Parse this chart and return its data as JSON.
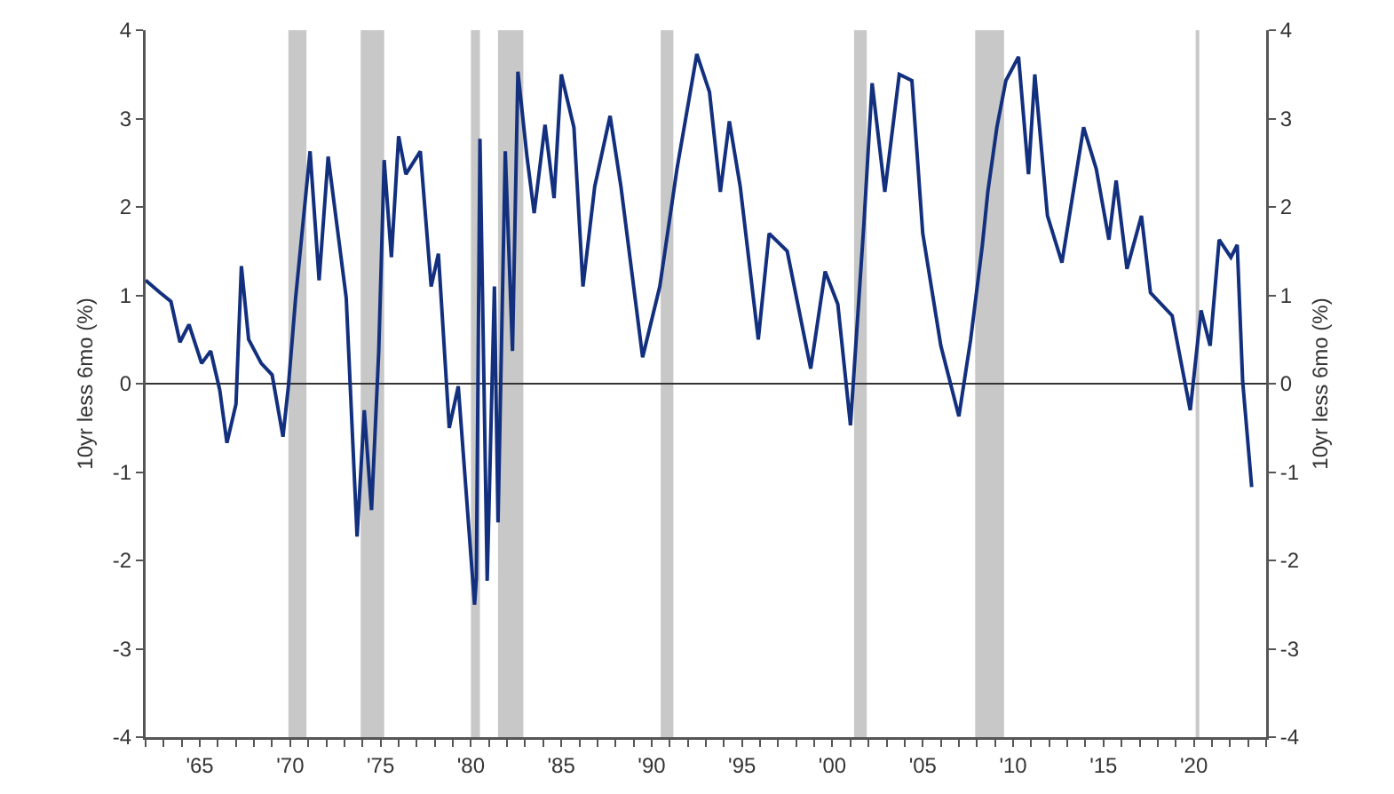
{
  "chart_data": {
    "type": "line",
    "ylabel": "10yr less 6mo (%)",
    "y2label": "10yr less 6mo (%)",
    "xlim": [
      1962.0,
      2024.0
    ],
    "xticks": [
      {
        "value": 1962,
        "label": null
      },
      {
        "value": 1963,
        "label": null
      },
      {
        "value": 1964,
        "label": null
      },
      {
        "value": 1965,
        "label": "'65"
      },
      {
        "value": 1966,
        "label": null
      },
      {
        "value": 1967,
        "label": null
      },
      {
        "value": 1968,
        "label": null
      },
      {
        "value": 1969,
        "label": null
      },
      {
        "value": 1970,
        "label": "'70"
      },
      {
        "value": 1971,
        "label": null
      },
      {
        "value": 1972,
        "label": null
      },
      {
        "value": 1973,
        "label": null
      },
      {
        "value": 1974,
        "label": null
      },
      {
        "value": 1975,
        "label": "'75"
      },
      {
        "value": 1976,
        "label": null
      },
      {
        "value": 1977,
        "label": null
      },
      {
        "value": 1978,
        "label": null
      },
      {
        "value": 1979,
        "label": null
      },
      {
        "value": 1980,
        "label": "'80"
      },
      {
        "value": 1981,
        "label": null
      },
      {
        "value": 1982,
        "label": null
      },
      {
        "value": 1983,
        "label": null
      },
      {
        "value": 1984,
        "label": null
      },
      {
        "value": 1985,
        "label": "'85"
      },
      {
        "value": 1986,
        "label": null
      },
      {
        "value": 1987,
        "label": null
      },
      {
        "value": 1988,
        "label": null
      },
      {
        "value": 1989,
        "label": null
      },
      {
        "value": 1990,
        "label": "'90"
      },
      {
        "value": 1991,
        "label": null
      },
      {
        "value": 1992,
        "label": null
      },
      {
        "value": 1993,
        "label": null
      },
      {
        "value": 1994,
        "label": null
      },
      {
        "value": 1995,
        "label": "'95"
      },
      {
        "value": 1996,
        "label": null
      },
      {
        "value": 1997,
        "label": null
      },
      {
        "value": 1998,
        "label": null
      },
      {
        "value": 1999,
        "label": null
      },
      {
        "value": 2000,
        "label": "'00"
      },
      {
        "value": 2001,
        "label": null
      },
      {
        "value": 2002,
        "label": null
      },
      {
        "value": 2003,
        "label": null
      },
      {
        "value": 2004,
        "label": null
      },
      {
        "value": 2005,
        "label": "'05"
      },
      {
        "value": 2006,
        "label": null
      },
      {
        "value": 2007,
        "label": null
      },
      {
        "value": 2008,
        "label": null
      },
      {
        "value": 2009,
        "label": null
      },
      {
        "value": 2010,
        "label": "'10"
      },
      {
        "value": 2011,
        "label": null
      },
      {
        "value": 2012,
        "label": null
      },
      {
        "value": 2013,
        "label": null
      },
      {
        "value": 2014,
        "label": null
      },
      {
        "value": 2015,
        "label": "'15"
      },
      {
        "value": 2016,
        "label": null
      },
      {
        "value": 2017,
        "label": null
      },
      {
        "value": 2018,
        "label": null
      },
      {
        "value": 2019,
        "label": null
      },
      {
        "value": 2020,
        "label": "'20"
      },
      {
        "value": 2021,
        "label": null
      },
      {
        "value": 2022,
        "label": null
      },
      {
        "value": 2023,
        "label": null
      },
      {
        "value": 2024,
        "label": null
      }
    ],
    "ylim": [
      -4,
      4
    ],
    "yticks": [
      -4,
      -3,
      -2,
      -1,
      0,
      1,
      2,
      3,
      4
    ],
    "y2lim": [
      -4,
      4
    ],
    "y2ticks": [
      -4,
      -3,
      -2,
      -1,
      0,
      1,
      2,
      3,
      4
    ],
    "ref_lines": [
      {
        "axis": "y",
        "value": 0,
        "color": "#333333"
      }
    ],
    "bands": [
      {
        "axis": "x",
        "from": 1969.9,
        "to": 1970.9,
        "color": "#c8c8c8"
      },
      {
        "axis": "x",
        "from": 1973.9,
        "to": 1975.2,
        "color": "#c8c8c8"
      },
      {
        "axis": "x",
        "from": 1980.0,
        "to": 1980.5,
        "color": "#c8c8c8"
      },
      {
        "axis": "x",
        "from": 1981.5,
        "to": 1982.9,
        "color": "#c8c8c8"
      },
      {
        "axis": "x",
        "from": 1990.5,
        "to": 1991.2,
        "color": "#c8c8c8"
      },
      {
        "axis": "x",
        "from": 2001.2,
        "to": 2001.9,
        "color": "#c8c8c8"
      },
      {
        "axis": "x",
        "from": 2007.9,
        "to": 2009.5,
        "color": "#c8c8c8"
      },
      {
        "axis": "x",
        "from": 2020.1,
        "to": 2020.3,
        "color": "#c8c8c8"
      }
    ],
    "series": [
      {
        "color": "#13307f",
        "x": [
          1962.0,
          1962.8,
          1963.4,
          1963.9,
          1964.4,
          1965.1,
          1965.6,
          1966.1,
          1966.5,
          1967.0,
          1967.3,
          1967.7,
          1968.4,
          1969.0,
          1969.6,
          1969.9,
          1970.3,
          1971.1,
          1971.6,
          1972.1,
          1973.1,
          1973.7,
          1974.1,
          1974.5,
          1974.9,
          1975.2,
          1975.6,
          1976.0,
          1976.4,
          1977.2,
          1977.8,
          1978.2,
          1978.8,
          1979.3,
          1980.2,
          1980.3,
          1980.5,
          1980.9,
          1981.3,
          1981.5,
          1981.9,
          1982.3,
          1982.6,
          1983.1,
          1983.5,
          1984.1,
          1984.6,
          1985.0,
          1985.7,
          1986.2,
          1986.85,
          1987.7,
          1988.3,
          1989.5,
          1990.45,
          1991.4,
          1992.5,
          1993.2,
          1993.8,
          1994.3,
          1994.9,
          1995.9,
          1996.5,
          1997.5,
          1998.8,
          1999.6,
          2000.3,
          2001.0,
          2001.75,
          2002.2,
          2002.9,
          2003.7,
          2004.4,
          2005.0,
          2006.0,
          2007.0,
          2007.65,
          2008.3,
          2008.6,
          2009.1,
          2009.6,
          2010.3,
          2010.85,
          2011.2,
          2011.9,
          2012.7,
          2013.9,
          2014.6,
          2015.3,
          2015.7,
          2016.3,
          2017.1,
          2017.6,
          2018.8,
          2019.8,
          2020.4,
          2020.9,
          2021.4,
          2022.05,
          2022.4,
          2022.7,
          2023.2
        ],
        "values": [
          1.17,
          1.03,
          0.93,
          0.47,
          0.67,
          0.23,
          0.37,
          -0.07,
          -0.67,
          -0.23,
          1.33,
          0.5,
          0.23,
          0.1,
          -0.6,
          -0.03,
          0.97,
          2.63,
          1.17,
          2.57,
          0.97,
          -1.73,
          -0.3,
          -1.43,
          0.37,
          2.53,
          1.43,
          2.8,
          2.37,
          2.63,
          1.1,
          1.47,
          -0.5,
          -0.03,
          -2.5,
          -2.2,
          2.77,
          -2.23,
          1.1,
          -1.57,
          2.63,
          0.37,
          3.53,
          2.57,
          1.93,
          2.93,
          2.1,
          3.5,
          2.9,
          1.1,
          2.23,
          3.03,
          2.23,
          0.3,
          1.1,
          2.43,
          3.73,
          3.3,
          2.17,
          2.97,
          2.23,
          0.5,
          1.7,
          1.5,
          0.17,
          1.27,
          0.9,
          -0.47,
          1.83,
          3.4,
          2.17,
          3.5,
          3.43,
          1.7,
          0.43,
          -0.37,
          0.5,
          1.57,
          2.17,
          2.9,
          3.43,
          3.7,
          2.37,
          3.5,
          1.9,
          1.37,
          2.9,
          2.43,
          1.63,
          2.3,
          1.3,
          1.9,
          1.03,
          0.77,
          -0.3,
          0.83,
          0.43,
          1.63,
          1.43,
          1.57,
          0.03,
          -1.17
        ]
      }
    ]
  }
}
